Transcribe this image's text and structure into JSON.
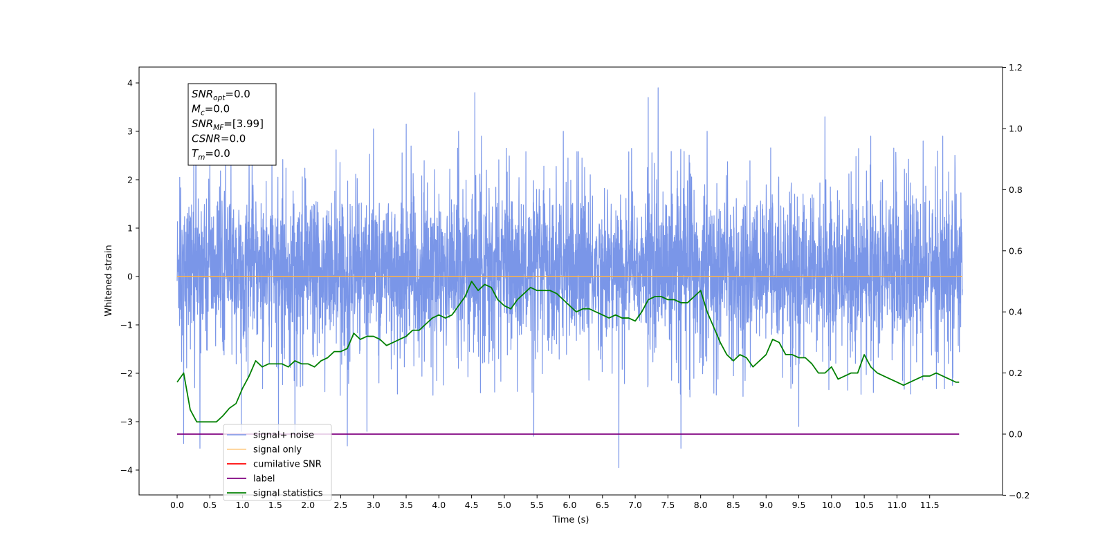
{
  "chart_data": {
    "type": "line",
    "xlabel": "Time (s)",
    "ylabel": "Whitened strain",
    "xlim": [
      -0.5,
      12.6
    ],
    "ylim": [
      -4.5,
      4.35
    ],
    "y2lim": [
      -0.2,
      1.2
    ],
    "x_ticks": [
      0.0,
      0.5,
      1.0,
      1.5,
      2.0,
      2.5,
      3.0,
      3.5,
      4.0,
      4.5,
      5.0,
      5.5,
      6.0,
      6.5,
      7.0,
      7.5,
      8.0,
      8.5,
      9.0,
      9.5,
      10.0,
      10.5,
      11.0,
      11.5
    ],
    "x_tick_labels": [
      "0.0",
      "0.5",
      "1.0",
      "1.5",
      "2.0",
      "2.5",
      "3.0",
      "3.5",
      "4.0",
      "4.5",
      "5.0",
      "5.5",
      "6.0",
      "6.5",
      "7.0",
      "7.5",
      "8.0",
      "8.5",
      "9.0",
      "9.5",
      "10.0",
      "10.5",
      "11.0",
      "11.5"
    ],
    "y_ticks": [
      -4,
      -3,
      -2,
      -1,
      0,
      1,
      2,
      3,
      4
    ],
    "y_tick_labels": [
      "−4",
      "−3",
      "−2",
      "−1",
      "0",
      "1",
      "2",
      "3",
      "4"
    ],
    "y2_ticks": [
      -0.2,
      0.0,
      0.2,
      0.4,
      0.6,
      0.8,
      1.0,
      1.2
    ],
    "y2_tick_labels": [
      "−0.2",
      "0.0",
      "0.2",
      "0.4",
      "0.6",
      "0.8",
      "1.0",
      "1.2"
    ],
    "grid": false,
    "legend_position": "lower-left",
    "annotation": {
      "lines": [
        {
          "base": "SNR",
          "sub": "opt",
          "rest": "=0.0"
        },
        {
          "base": "M",
          "sub": "c",
          "rest": "=0.0"
        },
        {
          "base": "SNR",
          "sub": "MF",
          "rest": "=[3.99]"
        },
        {
          "base": "CSNR",
          "sub": "",
          "rest": "=0.0"
        },
        {
          "base": "T",
          "sub": "m",
          "rest": "=0.0"
        }
      ]
    },
    "series": [
      {
        "name": "signal+ noise",
        "color": "#7a96e8",
        "axis": "left",
        "x_range": [
          0.0,
          12.0
        ],
        "noise_band": [
          -1.7,
          1.45
        ],
        "peaks": [
          {
            "x": 0.04,
            "y": 2.05
          },
          {
            "x": 0.1,
            "y": -3.45
          },
          {
            "x": 0.35,
            "y": -3.55
          },
          {
            "x": 0.5,
            "y": 2.4
          },
          {
            "x": 0.98,
            "y": -3.2
          },
          {
            "x": 1.1,
            "y": 2.8
          },
          {
            "x": 1.55,
            "y": -3.3
          },
          {
            "x": 1.8,
            "y": -3.3
          },
          {
            "x": 2.6,
            "y": -3.5
          },
          {
            "x": 2.9,
            "y": -3.2
          },
          {
            "x": 3.0,
            "y": 3.05
          },
          {
            "x": 3.5,
            "y": 3.15
          },
          {
            "x": 4.3,
            "y": 3.0
          },
          {
            "x": 4.55,
            "y": 3.8
          },
          {
            "x": 4.65,
            "y": 2.9
          },
          {
            "x": 5.45,
            "y": -3.3
          },
          {
            "x": 5.9,
            "y": 3.0
          },
          {
            "x": 6.75,
            "y": -3.95
          },
          {
            "x": 7.2,
            "y": 3.7
          },
          {
            "x": 7.35,
            "y": 3.9
          },
          {
            "x": 7.7,
            "y": -3.55
          },
          {
            "x": 8.1,
            "y": 3.0
          },
          {
            "x": 9.5,
            "y": -3.1
          },
          {
            "x": 9.9,
            "y": 3.3
          },
          {
            "x": 10.6,
            "y": 2.9
          },
          {
            "x": 11.4,
            "y": 2.8
          },
          {
            "x": 11.7,
            "y": 2.9
          },
          {
            "x": 11.95,
            "y": 1.0
          }
        ]
      },
      {
        "name": "signal only",
        "color": "#ffb347",
        "axis": "left",
        "x": [
          0.0,
          12.0
        ],
        "y": [
          0.0,
          0.0
        ]
      },
      {
        "name": "cumilative SNR",
        "color": "#ff0000",
        "axis": "right",
        "x": [],
        "y": []
      },
      {
        "name": "label",
        "color": "#800080",
        "axis": "right",
        "x": [
          0.0,
          11.95
        ],
        "y": [
          0.0,
          0.0
        ]
      },
      {
        "name": "signal statistics",
        "color": "#008000",
        "axis": "right",
        "x": [
          0.0,
          0.1,
          0.2,
          0.3,
          0.4,
          0.5,
          0.6,
          0.7,
          0.8,
          0.9,
          1.0,
          1.1,
          1.2,
          1.3,
          1.4,
          1.5,
          1.6,
          1.7,
          1.8,
          1.9,
          2.0,
          2.1,
          2.2,
          2.3,
          2.4,
          2.5,
          2.6,
          2.7,
          2.8,
          2.9,
          3.0,
          3.1,
          3.2,
          3.3,
          3.4,
          3.5,
          3.6,
          3.7,
          3.8,
          3.9,
          4.0,
          4.1,
          4.2,
          4.3,
          4.4,
          4.5,
          4.6,
          4.7,
          4.8,
          4.9,
          5.0,
          5.1,
          5.2,
          5.3,
          5.4,
          5.5,
          5.6,
          5.7,
          5.8,
          5.9,
          6.0,
          6.1,
          6.2,
          6.3,
          6.4,
          6.5,
          6.6,
          6.7,
          6.8,
          6.9,
          7.0,
          7.1,
          7.2,
          7.3,
          7.4,
          7.5,
          7.6,
          7.7,
          7.8,
          7.9,
          8.0,
          8.1,
          8.2,
          8.3,
          8.4,
          8.5,
          8.6,
          8.7,
          8.8,
          8.9,
          9.0,
          9.1,
          9.2,
          9.3,
          9.4,
          9.5,
          9.6,
          9.7,
          9.8,
          9.9,
          10.0,
          10.1,
          10.2,
          10.3,
          10.4,
          10.5,
          10.6,
          10.7,
          10.8,
          10.9,
          11.0,
          11.1,
          11.2,
          11.3,
          11.4,
          11.5,
          11.6,
          11.7,
          11.8,
          11.9,
          11.95
        ],
        "y": [
          0.17,
          0.2,
          0.08,
          0.04,
          0.04,
          0.04,
          0.04,
          0.06,
          0.085,
          0.1,
          0.15,
          0.19,
          0.24,
          0.22,
          0.23,
          0.23,
          0.23,
          0.22,
          0.24,
          0.23,
          0.23,
          0.22,
          0.24,
          0.25,
          0.27,
          0.27,
          0.28,
          0.33,
          0.31,
          0.32,
          0.32,
          0.31,
          0.29,
          0.3,
          0.31,
          0.32,
          0.34,
          0.34,
          0.36,
          0.38,
          0.39,
          0.38,
          0.39,
          0.42,
          0.45,
          0.5,
          0.47,
          0.49,
          0.48,
          0.44,
          0.42,
          0.41,
          0.44,
          0.46,
          0.48,
          0.47,
          0.47,
          0.47,
          0.46,
          0.44,
          0.42,
          0.4,
          0.41,
          0.41,
          0.4,
          0.39,
          0.38,
          0.39,
          0.38,
          0.38,
          0.37,
          0.4,
          0.44,
          0.45,
          0.45,
          0.44,
          0.44,
          0.43,
          0.43,
          0.45,
          0.47,
          0.4,
          0.35,
          0.3,
          0.26,
          0.24,
          0.26,
          0.25,
          0.22,
          0.24,
          0.26,
          0.31,
          0.3,
          0.26,
          0.26,
          0.25,
          0.25,
          0.23,
          0.2,
          0.2,
          0.22,
          0.18,
          0.19,
          0.2,
          0.2,
          0.26,
          0.22,
          0.2,
          0.19,
          0.18,
          0.17,
          0.16,
          0.17,
          0.18,
          0.19,
          0.19,
          0.2,
          0.19,
          0.18,
          0.17,
          0.17
        ]
      }
    ]
  }
}
